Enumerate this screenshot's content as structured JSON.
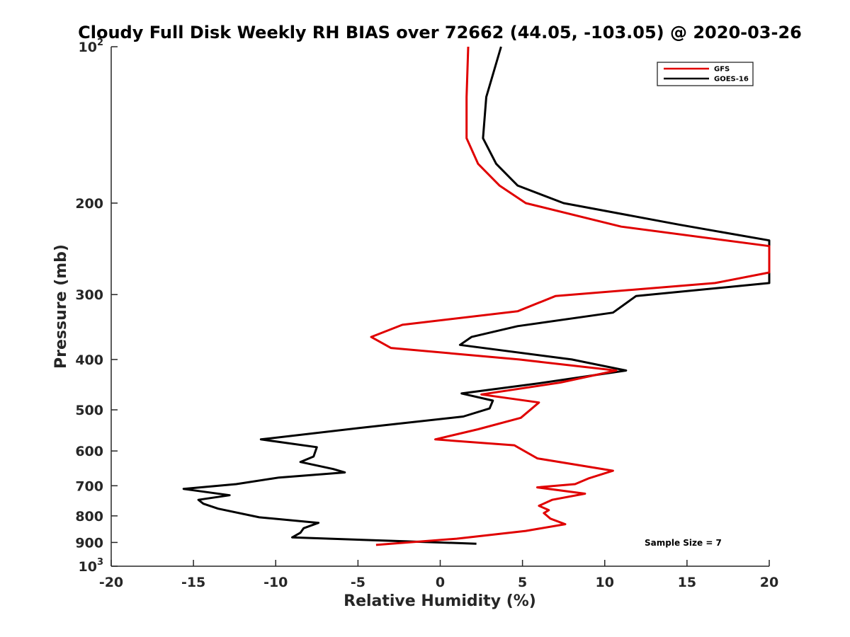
{
  "chart_data": {
    "type": "line",
    "title": "Cloudy Full Disk Weekly RH BIAS over 72662 (44.05, -103.05) @ 2020-03-26",
    "xlabel": "Relative Humidity (%)",
    "ylabel": "Pressure (mb)",
    "xlim": [
      -20,
      20
    ],
    "ylim": [
      100,
      1000
    ],
    "y_scale": "log",
    "y_reversed": true,
    "grid": false,
    "legend_position": "top-right",
    "x_ticks": [
      -20,
      -15,
      -10,
      -5,
      0,
      5,
      10,
      15,
      20
    ],
    "x_tick_labels": [
      "-20",
      "-15",
      "-10",
      "-5",
      "0",
      "5",
      "10",
      "15",
      "20"
    ],
    "y_ticks": [
      {
        "value": 100,
        "base": "10",
        "exp": "2"
      },
      {
        "value": 200,
        "label": "200"
      },
      {
        "value": 300,
        "label": "300"
      },
      {
        "value": 400,
        "label": "400"
      },
      {
        "value": 500,
        "label": "500"
      },
      {
        "value": 600,
        "label": "600"
      },
      {
        "value": 700,
        "label": "700"
      },
      {
        "value": 800,
        "label": "800"
      },
      {
        "value": 900,
        "label": "900"
      },
      {
        "value": 1000,
        "base": "10",
        "exp": "3"
      }
    ],
    "series": [
      {
        "name": "GFS",
        "color": "#e00000",
        "points": [
          [
            1.7,
            100
          ],
          [
            1.6,
            125
          ],
          [
            1.6,
            150
          ],
          [
            2.3,
            168
          ],
          [
            3.6,
            185
          ],
          [
            5.2,
            200
          ],
          [
            11.0,
            222
          ],
          [
            20.0,
            242
          ],
          [
            20.0,
            272
          ],
          [
            16.7,
            285
          ],
          [
            7.0,
            302
          ],
          [
            4.7,
            323
          ],
          [
            -2.3,
            343
          ],
          [
            -4.2,
            362
          ],
          [
            -3.0,
            380
          ],
          [
            4.8,
            400
          ],
          [
            10.7,
            420
          ],
          [
            7.3,
            443
          ],
          [
            2.5,
            467
          ],
          [
            6.0,
            484
          ],
          [
            4.9,
            518
          ],
          [
            2.3,
            545
          ],
          [
            -0.3,
            570
          ],
          [
            4.5,
            585
          ],
          [
            5.9,
            620
          ],
          [
            10.5,
            655
          ],
          [
            9.0,
            678
          ],
          [
            8.2,
            695
          ],
          [
            5.9,
            705
          ],
          [
            8.8,
            725
          ],
          [
            6.8,
            745
          ],
          [
            6.0,
            765
          ],
          [
            6.6,
            780
          ],
          [
            6.3,
            790
          ],
          [
            6.7,
            810
          ],
          [
            7.6,
            830
          ],
          [
            5.2,
            855
          ],
          [
            1.0,
            885
          ],
          [
            -3.9,
            910
          ]
        ]
      },
      {
        "name": "GOES-16",
        "color": "#000000",
        "points": [
          [
            3.7,
            100
          ],
          [
            2.8,
            125
          ],
          [
            2.6,
            150
          ],
          [
            3.4,
            168
          ],
          [
            4.7,
            185
          ],
          [
            7.5,
            200
          ],
          [
            14.5,
            220
          ],
          [
            20.0,
            236
          ],
          [
            20.0,
            285
          ],
          [
            11.9,
            302
          ],
          [
            10.5,
            325
          ],
          [
            4.7,
            345
          ],
          [
            1.9,
            362
          ],
          [
            1.2,
            375
          ],
          [
            8.0,
            400
          ],
          [
            11.3,
            420
          ],
          [
            5.9,
            445
          ],
          [
            1.3,
            465
          ],
          [
            3.2,
            480
          ],
          [
            3.0,
            497
          ],
          [
            1.4,
            515
          ],
          [
            -4.5,
            540
          ],
          [
            -10.9,
            570
          ],
          [
            -7.5,
            590
          ],
          [
            -7.7,
            615
          ],
          [
            -8.5,
            630
          ],
          [
            -6.5,
            650
          ],
          [
            -5.8,
            660
          ],
          [
            -9.8,
            675
          ],
          [
            -12.4,
            695
          ],
          [
            -15.6,
            710
          ],
          [
            -12.8,
            730
          ],
          [
            -14.7,
            745
          ],
          [
            -14.4,
            758
          ],
          [
            -13.5,
            775
          ],
          [
            -11.0,
            805
          ],
          [
            -7.4,
            825
          ],
          [
            -8.3,
            845
          ],
          [
            -8.5,
            862
          ],
          [
            -9.0,
            880
          ],
          [
            2.2,
            905
          ]
        ]
      }
    ],
    "annotations": [
      {
        "text": "Sample Size = 7"
      }
    ]
  }
}
